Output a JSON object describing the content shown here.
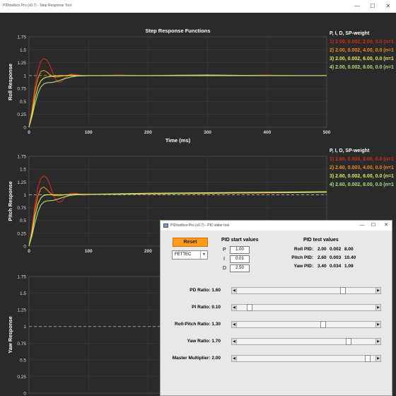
{
  "window": {
    "title": "PIDtoolbox Pro (v0.7) - Step Response Tool",
    "controls": [
      "—",
      "☐",
      "✕"
    ]
  },
  "chart_data": [
    {
      "type": "line",
      "title": "Step Response Functions",
      "xlabel": "Time (ms)",
      "ylabel": "Roll Response",
      "xlim": [
        0,
        500
      ],
      "ylim": [
        0,
        1.75
      ],
      "xticks": [
        "0",
        "100",
        "200",
        "300",
        "400",
        "500"
      ],
      "yticks": [
        "0",
        "0.25",
        "0.5",
        "0.75",
        "1",
        "1.25",
        "1.5",
        "1.75"
      ],
      "grid": true,
      "reference_line": 1,
      "series": [
        {
          "color": "#d42a1e",
          "x": [
            0,
            5,
            10,
            15,
            20,
            25,
            30,
            35,
            40,
            45,
            50,
            55,
            60,
            70,
            80,
            90,
            100,
            150,
            200,
            250,
            300,
            350,
            400,
            450,
            500
          ],
          "y": [
            0,
            0.35,
            0.8,
            1.1,
            1.28,
            1.33,
            1.3,
            1.2,
            1.05,
            0.92,
            0.87,
            0.88,
            0.95,
            1.03,
            1.02,
            0.99,
            1.0,
            1.01,
            1.0,
            1.01,
            1.0,
            1.0,
            1.01,
            1.0,
            1.0
          ]
        },
        {
          "color": "#f08a1f",
          "x": [
            0,
            5,
            10,
            15,
            20,
            25,
            30,
            35,
            40,
            45,
            50,
            60,
            70,
            80,
            100,
            150,
            200,
            300,
            400,
            500
          ],
          "y": [
            0,
            0.3,
            0.7,
            0.95,
            1.08,
            1.1,
            1.07,
            1.02,
            0.98,
            0.97,
            0.98,
            1.0,
            1.01,
            1.0,
            1.0,
            1.0,
            1.0,
            1.0,
            1.0,
            1.0
          ]
        },
        {
          "color": "#e6e85a",
          "x": [
            0,
            5,
            10,
            15,
            20,
            25,
            30,
            35,
            40,
            50,
            60,
            80,
            100,
            150,
            200,
            300,
            400,
            500
          ],
          "y": [
            0,
            0.25,
            0.55,
            0.78,
            0.9,
            0.95,
            0.97,
            0.98,
            0.99,
            1.0,
            1.0,
            1.0,
            1.0,
            1.0,
            1.0,
            1.0,
            1.0,
            1.0
          ]
        },
        {
          "color": "#a7e07a",
          "x": [
            0,
            5,
            10,
            15,
            20,
            25,
            30,
            40,
            50,
            60,
            70,
            80,
            100,
            150,
            200,
            300,
            400,
            500
          ],
          "y": [
            0,
            0.2,
            0.45,
            0.65,
            0.78,
            0.84,
            0.86,
            0.87,
            0.9,
            0.94,
            0.97,
            0.99,
            1.0,
            1.0,
            1.0,
            1.01,
            1.0,
            1.0
          ]
        }
      ]
    },
    {
      "type": "line",
      "title": "",
      "xlabel": "",
      "ylabel": "Pitch Response",
      "xlim": [
        0,
        500
      ],
      "ylim": [
        0,
        1.75
      ],
      "xticks": [
        "0",
        "100",
        "200",
        "300",
        "400",
        "500"
      ],
      "yticks": [
        "0",
        "0.25",
        "0.5",
        "0.75",
        "1",
        "1.25",
        "1.5",
        "1.75"
      ],
      "grid": true,
      "reference_line": 1,
      "series": [
        {
          "color": "#d42a1e",
          "x": [
            0,
            5,
            10,
            15,
            20,
            25,
            30,
            35,
            40,
            45,
            50,
            55,
            60,
            70,
            80,
            90,
            100,
            150,
            200,
            250,
            300,
            350,
            400,
            450,
            500
          ],
          "y": [
            0,
            0.35,
            0.8,
            1.15,
            1.32,
            1.37,
            1.33,
            1.2,
            1.02,
            0.9,
            0.85,
            0.87,
            0.95,
            1.03,
            1.03,
            0.99,
            1.0,
            1.01,
            1.01,
            1.02,
            1.02,
            1.03,
            1.03,
            1.04,
            1.05
          ]
        },
        {
          "color": "#f08a1f",
          "x": [
            0,
            5,
            10,
            15,
            20,
            25,
            30,
            35,
            40,
            50,
            60,
            80,
            100,
            150,
            200,
            300,
            400,
            500
          ],
          "y": [
            0,
            0.3,
            0.7,
            0.98,
            1.12,
            1.15,
            1.1,
            1.04,
            0.99,
            0.98,
            1.0,
            1.01,
            1.01,
            1.01,
            1.02,
            1.03,
            1.04,
            1.05
          ]
        },
        {
          "color": "#e6e85a",
          "x": [
            0,
            5,
            10,
            15,
            20,
            25,
            30,
            40,
            50,
            60,
            80,
            100,
            150,
            200,
            300,
            400,
            500
          ],
          "y": [
            0,
            0.25,
            0.58,
            0.82,
            0.94,
            0.99,
            1.0,
            1.0,
            1.0,
            1.0,
            1.01,
            1.01,
            1.02,
            1.03,
            1.04,
            1.05,
            1.06
          ]
        },
        {
          "color": "#a7e07a",
          "x": [
            0,
            5,
            10,
            15,
            20,
            25,
            30,
            40,
            50,
            60,
            70,
            80,
            100,
            150,
            200,
            300,
            400,
            500
          ],
          "y": [
            0,
            0.2,
            0.45,
            0.66,
            0.8,
            0.86,
            0.88,
            0.89,
            0.92,
            0.96,
            0.99,
            1.0,
            1.01,
            1.01,
            1.02,
            1.03,
            1.04,
            1.05
          ]
        }
      ]
    },
    {
      "type": "line",
      "title": "",
      "xlabel": "",
      "ylabel": "Yaw Response",
      "xlim": [
        0,
        500
      ],
      "ylim": [
        0,
        1.75
      ],
      "xticks": [
        "0",
        "100",
        "200"
      ],
      "yticks": [
        "0",
        "0.25",
        "0.5",
        "0.75",
        "1",
        "1.25",
        "1.5",
        "1.75"
      ],
      "grid": true,
      "reference_line": 1,
      "series": []
    }
  ],
  "legends": [
    {
      "header": "P, I, D, SP-weight",
      "entries": [
        {
          "text": "1) 2.00, 0.002, 2.00, 0.0  (n=1",
          "color": "#d42a1e"
        },
        {
          "text": "2) 2.00, 0.002, 4.00, 0.0  (n=1",
          "color": "#f08a1f"
        },
        {
          "text": "3) 2.00, 0.002, 6.00, 0.0  (n=1",
          "color": "#e6e85a"
        },
        {
          "text": "4) 2.00, 0.002, 8.00, 0.0  (n=1",
          "color": "#a7e07a"
        }
      ]
    },
    {
      "header": "P, I, D, SP-weight",
      "entries": [
        {
          "text": "1) 2.60, 0.003, 2.00, 0.0  (n=1",
          "color": "#d42a1e"
        },
        {
          "text": "2) 2.60, 0.003, 4.00, 0.0  (n=1",
          "color": "#f08a1f"
        },
        {
          "text": "3) 2.60, 0.002, 6.00, 0.0  (n=1",
          "color": "#e6e85a"
        },
        {
          "text": "4) 2.60, 0.002, 8.00, 0.0  (n=1",
          "color": "#a7e07a"
        }
      ]
    }
  ],
  "slider_tool": {
    "title": "PIDtoolbox Pro (v0.7) - PID slider tool",
    "controls": [
      "—",
      "☐",
      "✕"
    ],
    "reset_label": "Reset",
    "firmware": "FETTEC",
    "start_heading": "PID start values",
    "start_values": [
      {
        "label": "P",
        "value": "1.00"
      },
      {
        "label": "I",
        "value": "0.01"
      },
      {
        "label": "D",
        "value": "2.50"
      }
    ],
    "test_heading": "PID test values",
    "test_values": [
      {
        "label": "Roll PID:",
        "p": "2.00",
        "i": "0.002",
        "d": "8.00"
      },
      {
        "label": "Pitch PID:",
        "p": "2.60",
        "i": "0.003",
        "d": "10.40"
      },
      {
        "label": "Yaw PID:",
        "p": "3.40",
        "i": "0.034",
        "d": "1.09"
      }
    ],
    "sliders": [
      {
        "label": "PD Ratio: 1.60",
        "value": 0.78
      },
      {
        "label": "PI Ratio: 0.10",
        "value": 0.07
      },
      {
        "label": "Roll-Pitch Ratio: 1.30",
        "value": 0.63
      },
      {
        "label": "Yaw Ratio: 1.70",
        "value": 0.82
      },
      {
        "label": "Master Multiplier: 2.00",
        "value": 0.97
      }
    ]
  }
}
